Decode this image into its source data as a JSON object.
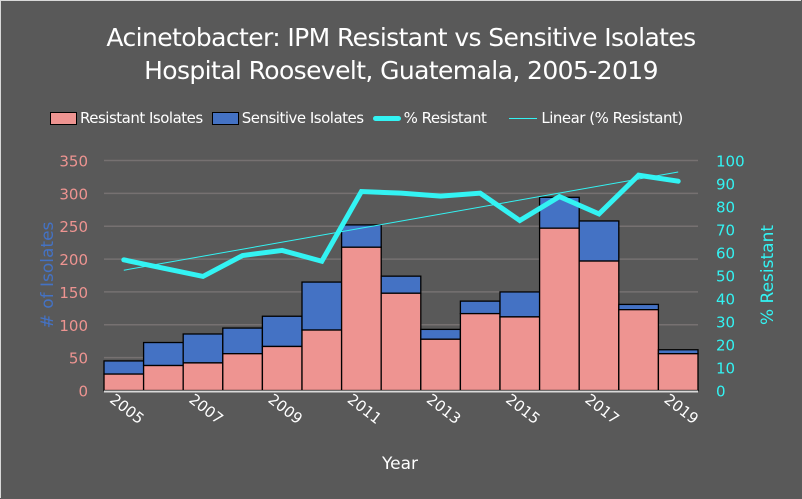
{
  "chart_data": {
    "type": "bar",
    "subtype": "stacked bar with line on secondary axis",
    "title": "Acinetobacter: IPM Resistant vs Sensitive Isolates",
    "subtitle": "Hospital Roosevelt, Guatemala, 2005-2019",
    "xlabel": "Year",
    "ylabel": "# of Isolates",
    "y2label": "% Resistant",
    "categories": [
      "2005",
      "2006",
      "2007",
      "2008",
      "2009",
      "2010",
      "2011",
      "2012",
      "2013",
      "2014",
      "2015",
      "2016",
      "2017",
      "2018",
      "2019"
    ],
    "xtick_labels": [
      "2005",
      "2007",
      "2009",
      "2011",
      "2013",
      "2015",
      "2017",
      "2019"
    ],
    "ylim": [
      0,
      350
    ],
    "yticks": [
      0,
      50,
      100,
      150,
      200,
      250,
      300,
      350
    ],
    "y2lim": [
      0,
      100
    ],
    "y2ticks": [
      0,
      10,
      20,
      30,
      40,
      50,
      60,
      70,
      80,
      90,
      100
    ],
    "grid": true,
    "legend_position": "top",
    "series": [
      {
        "name": "Resistant Isolates",
        "type": "bar",
        "axis": "left",
        "color": "#ee9491",
        "values": [
          25,
          38,
          42,
          56,
          67,
          92,
          218,
          148,
          78,
          117,
          112,
          247,
          197,
          123,
          56
        ]
      },
      {
        "name": "Sensitive Isolates",
        "type": "bar",
        "axis": "left",
        "color": "#4472c4",
        "values": [
          20,
          35,
          44,
          39,
          46,
          73,
          34,
          26,
          15,
          19,
          38,
          47,
          61,
          8,
          6
        ]
      },
      {
        "name": "% Resistant",
        "type": "line",
        "axis": "right",
        "color": "#33f3f3",
        "values": [
          56.8,
          53.2,
          49.6,
          58.7,
          60.9,
          56.2,
          86.5,
          85.8,
          84.5,
          85.8,
          73.9,
          84.3,
          76.8,
          93.6,
          91.0
        ]
      },
      {
        "name": "Linear (% Resistant)",
        "type": "trendline",
        "axis": "right",
        "color": "#33f3f3",
        "values": [
          52.3,
          95.0
        ],
        "x_range": [
          "2005",
          "2019"
        ]
      }
    ]
  },
  "legend": {
    "items": [
      "Resistant Isolates",
      "Sensitive Isolates",
      "% Resistant",
      "Linear (% Resistant)"
    ]
  },
  "colors": {
    "background": "#595959",
    "resistant": "#ee9491",
    "sensitive": "#4472c4",
    "line": "#33f3f3",
    "left_tick": "#ee9491",
    "left_label": "#4472c4",
    "right_tick": "#33f3f3",
    "grid": "#767171"
  }
}
